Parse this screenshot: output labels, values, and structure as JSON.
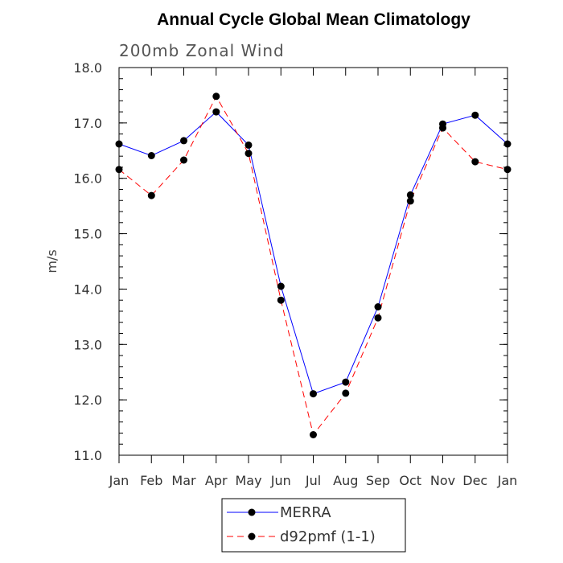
{
  "chart_data": {
    "type": "line",
    "title": "Annual Cycle Global Mean Climatology",
    "subtitle": "200mb Zonal Wind",
    "ylabel": "m/s",
    "xlabel": "",
    "categories": [
      "Jan",
      "Feb",
      "Mar",
      "Apr",
      "May",
      "Jun",
      "Jul",
      "Aug",
      "Sep",
      "Oct",
      "Nov",
      "Dec",
      "Jan"
    ],
    "ylim": [
      11.0,
      18.0
    ],
    "yticks": [
      "11.0",
      "12.0",
      "13.0",
      "14.0",
      "15.0",
      "16.0",
      "17.0",
      "18.0"
    ],
    "grid": false,
    "legend_position": "bottom",
    "series": [
      {
        "name": "MERRA",
        "color": "#0000ff",
        "line_style": "solid",
        "values": [
          16.62,
          16.41,
          16.68,
          17.2,
          16.6,
          14.05,
          12.11,
          12.32,
          13.68,
          15.7,
          16.98,
          17.14,
          16.62
        ]
      },
      {
        "name": "d92pmf (1-1)",
        "color": "#ff0000",
        "line_style": "dashed",
        "values": [
          16.16,
          15.69,
          16.33,
          17.48,
          16.45,
          13.8,
          11.37,
          12.12,
          13.48,
          15.59,
          16.91,
          16.3,
          16.16
        ]
      }
    ]
  }
}
